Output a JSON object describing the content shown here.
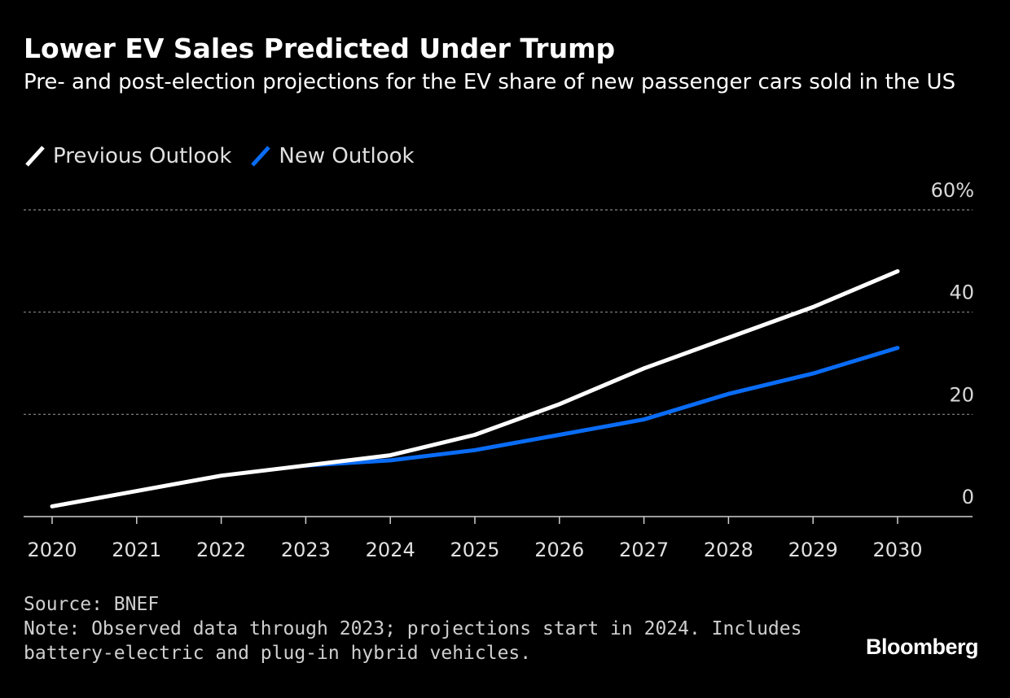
{
  "header": {
    "title": "Lower EV Sales Predicted Under Trump",
    "subtitle": "Pre- and post-election projections for the EV share of new passenger cars sold in the US"
  },
  "legend": {
    "items": [
      {
        "label": "Previous Outlook",
        "color": "#ffffff"
      },
      {
        "label": "New Outlook",
        "color": "#0a6cf5"
      }
    ]
  },
  "chart_data": {
    "type": "line",
    "x": [
      "2020",
      "2021",
      "2022",
      "2023",
      "2024",
      "2025",
      "2026",
      "2027",
      "2028",
      "2029",
      "2030"
    ],
    "series": [
      {
        "name": "Previous Outlook",
        "color": "#ffffff",
        "values": [
          2,
          5,
          8,
          10,
          12,
          16,
          22,
          29,
          35,
          41,
          48
        ]
      },
      {
        "name": "New Outlook",
        "color": "#0a6cf5",
        "values": [
          null,
          null,
          null,
          10,
          11,
          13,
          16,
          19,
          24,
          28,
          33
        ]
      }
    ],
    "ylim": [
      0,
      60
    ],
    "yticks": [
      0,
      20,
      40,
      60
    ],
    "ytick_labels": [
      "0",
      "20",
      "40",
      "60%"
    ],
    "y_axis_side": "right",
    "grid": true
  },
  "footer": {
    "source": "Source: BNEF",
    "note_line1": "Note: Observed data through 2023; projections start in 2024. Includes",
    "note_line2": "battery-electric and plug-in hybrid vehicles.",
    "brand": "Bloomberg"
  }
}
